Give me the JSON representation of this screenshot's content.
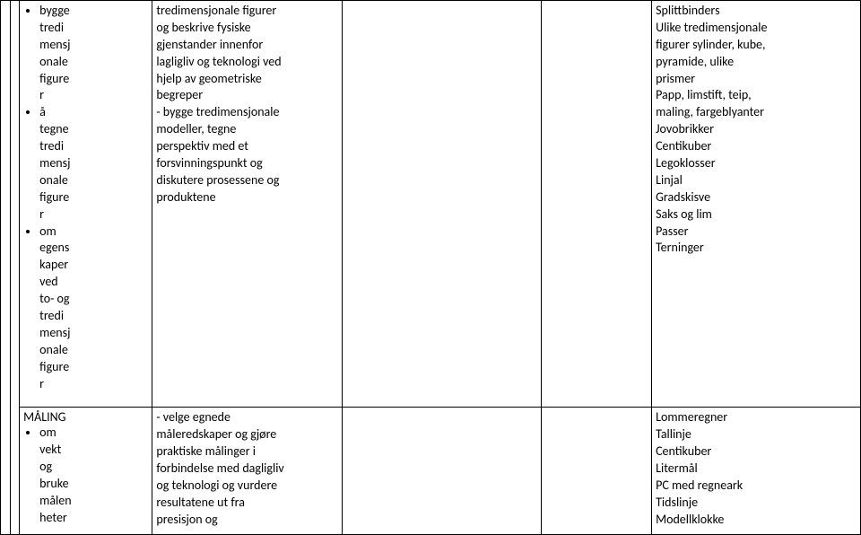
{
  "row1": {
    "col3": {
      "bullets": [
        [
          "bygge",
          "tredi",
          "mensj",
          "onale",
          "figure",
          "r"
        ],
        [
          "å",
          "tegne",
          "tredi",
          "mensj",
          "onale",
          "figure",
          "r"
        ],
        [
          "om",
          "egens",
          "kaper",
          "ved",
          "to- og",
          "tredi",
          "mensj",
          "onale",
          "figure",
          "r"
        ]
      ]
    },
    "col4": [
      "tredimensjonale figurer",
      "og beskrive fysiske",
      "gjenstander innenfor",
      "lagligliv og teknologi ved",
      "hjelp av geometriske",
      "begreper",
      "- bygge tredimensjonale",
      "modeller, tegne",
      "perspektiv med et",
      "forsvinningspunkt og",
      "diskutere prosessene og",
      "produktene"
    ],
    "col7": [
      "Splittbinders",
      "Ulike tredimensjonale",
      "figurer sylinder, kube,",
      "pyramide, ulike",
      "prismer",
      "Papp, limstift, teip,",
      "maling, fargeblyanter",
      "Jovobrikker",
      "Centikuber",
      "Legoklosser",
      "Linjal",
      "Gradskisve",
      "Saks og lim",
      "Passer",
      "Terninger"
    ]
  },
  "row2": {
    "col3": {
      "heading": "MÅLING",
      "bullets": [
        [
          "om",
          "vekt",
          "og",
          "bruke",
          "målen",
          "heter"
        ]
      ]
    },
    "col4": [
      "- velge egnede",
      "måleredskaper og gjøre",
      "praktiske målinger i",
      "forbindelse med dagligliv",
      "og teknologi og vurdere",
      "resultatene ut fra",
      "presisjon og"
    ],
    "col7": [
      "Lommeregner",
      "Tallinje",
      "Centikuber",
      "Litermål",
      "PC med regneark",
      "Tidslinje",
      "Modellklokke"
    ]
  }
}
